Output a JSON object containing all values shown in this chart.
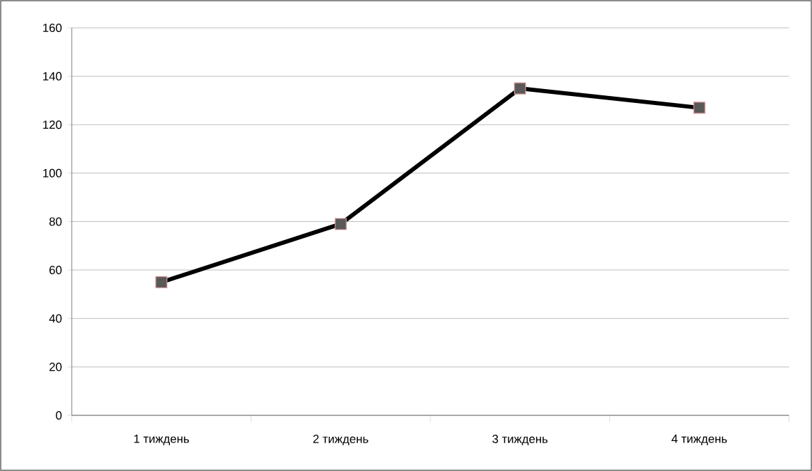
{
  "chart_data": {
    "type": "line",
    "categories": [
      "1 тиждень",
      "2 тиждень",
      "3 тиждень",
      "4 тиждень"
    ],
    "series": [
      {
        "color": "#000000",
        "values": [
          55,
          79,
          135,
          127
        ]
      }
    ],
    "marker": "square",
    "line_style": "solid",
    "grid": "y",
    "ylim": [
      0,
      160
    ],
    "yticks": [
      0,
      20,
      40,
      60,
      80,
      100,
      120,
      140,
      160
    ]
  }
}
